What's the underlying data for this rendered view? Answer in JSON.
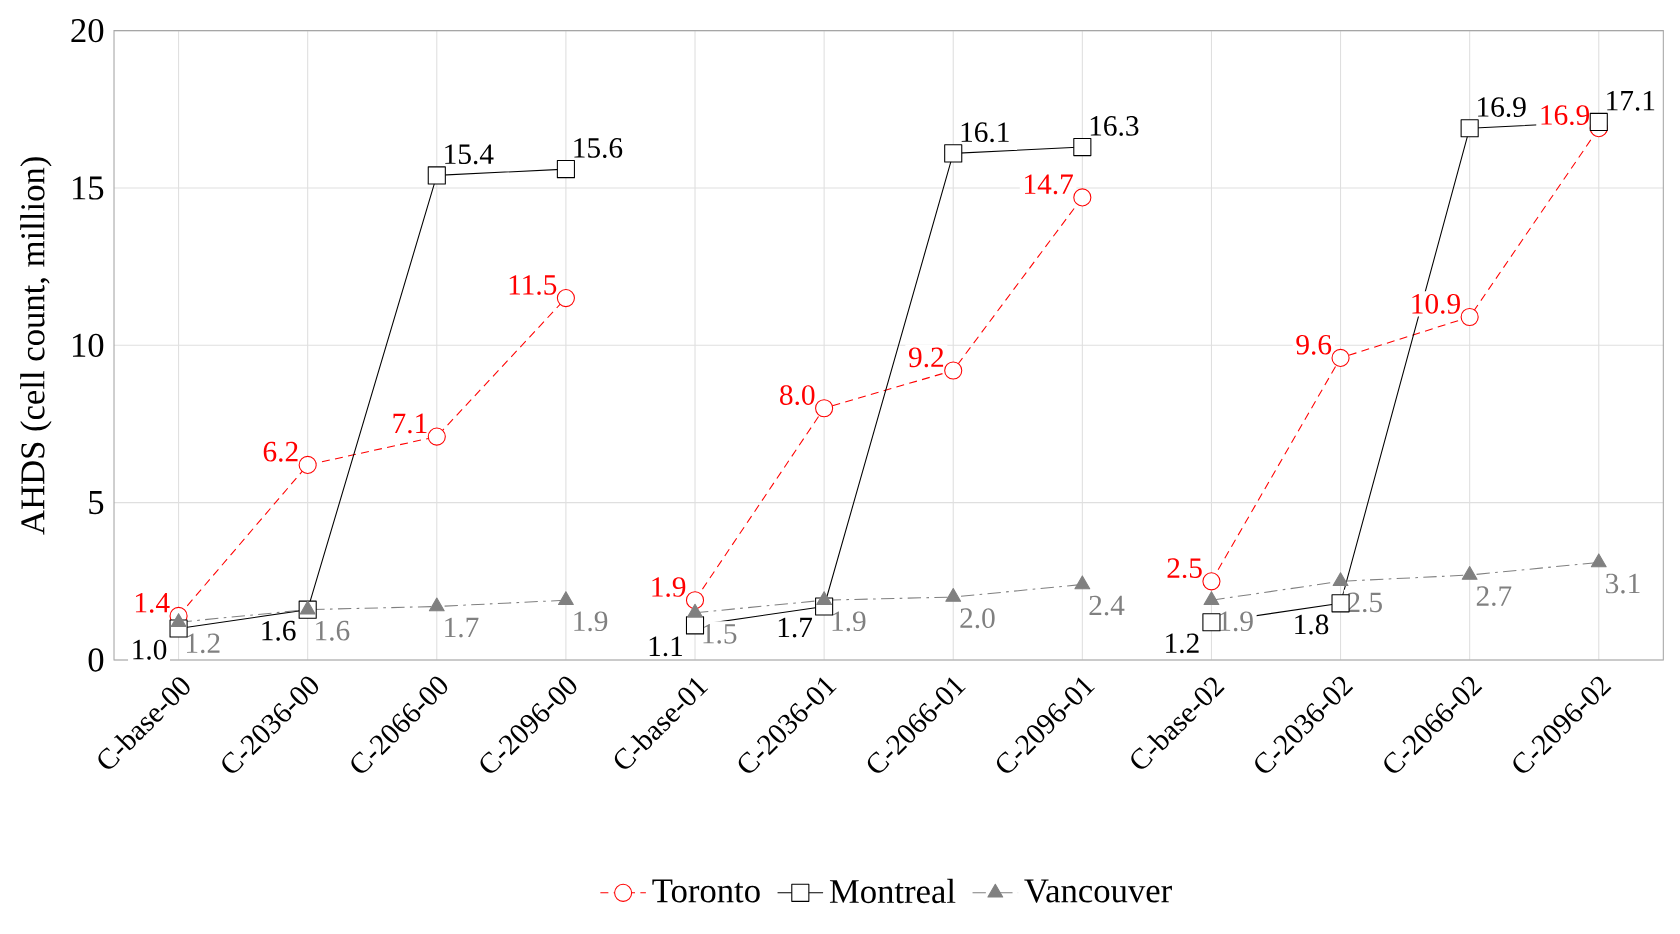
{
  "chart_data": {
    "type": "line",
    "ylabel": "AHDS (cell count, million)",
    "categories": [
      "C-base-00",
      "C-2036-00",
      "C-2066-00",
      "C-2096-00",
      "C-base-01",
      "C-2036-01",
      "C-2066-01",
      "C-2096-01",
      "C-base-02",
      "C-2036-02",
      "C-2066-02",
      "C-2096-02"
    ],
    "series": [
      {
        "name": "Toronto",
        "color": "#ff0000",
        "marker": "circle",
        "line_style": "dashed",
        "values": [
          1.4,
          6.2,
          7.1,
          11.5,
          1.9,
          8.0,
          9.2,
          14.7,
          2.5,
          9.6,
          10.9,
          16.9
        ],
        "value_labels": [
          "1.4",
          "6.2",
          "7.1",
          "11.5",
          "1.9",
          "8.0",
          "9.2",
          "14.7",
          "2.5",
          "9.6",
          "10.9",
          "16.9"
        ]
      },
      {
        "name": "Montreal",
        "color": "#000000",
        "marker": "square",
        "line_style": "solid",
        "values": [
          1.0,
          1.6,
          15.4,
          15.6,
          1.1,
          1.7,
          16.1,
          16.3,
          1.2,
          1.8,
          16.9,
          17.1
        ],
        "value_labels": [
          "1.0",
          "1.6",
          "15.4",
          "15.6",
          "1.1",
          "1.7",
          "16.1",
          "16.3",
          "1.2",
          "1.8",
          "16.9",
          "17.1"
        ]
      },
      {
        "name": "Vancouver",
        "color": "#808080",
        "marker": "triangle",
        "line_style": "dashdot",
        "values": [
          1.2,
          1.6,
          1.7,
          1.9,
          1.5,
          1.9,
          2.0,
          2.4,
          1.9,
          2.5,
          2.7,
          3.1
        ],
        "value_labels": [
          "1.2",
          "1.6",
          "1.7",
          "1.9",
          "1.5",
          "1.9",
          "2.0",
          "2.4",
          "1.9",
          "2.5",
          "2.7",
          "3.1"
        ]
      }
    ],
    "ylim": [
      0,
      20
    ],
    "yticks": [
      0,
      5,
      10,
      15,
      20
    ],
    "grid": true,
    "legend": "bottom"
  }
}
